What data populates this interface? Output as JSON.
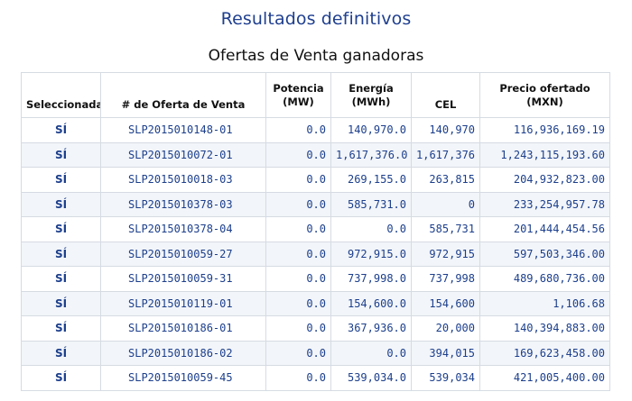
{
  "page_title": "Resultados definitivos",
  "table_title": "Ofertas de Venta ganadoras",
  "columns": {
    "seleccionada": "Seleccionada",
    "oferta": "# de Oferta de Venta",
    "potencia_line1": "Potencia",
    "potencia_line2": "(MW)",
    "energia_line1": "Energía",
    "energia_line2": "(MWh)",
    "cel": "CEL",
    "precio_line1": "Precio ofertado",
    "precio_line2": "(MXN)"
  },
  "rows": [
    {
      "sel": "SÍ",
      "id": "SLP2015010148-01",
      "potencia": "0.0",
      "energia": "140,970.0",
      "cel": "140,970",
      "precio": "116,936,169.19"
    },
    {
      "sel": "SÍ",
      "id": "SLP2015010072-01",
      "potencia": "0.0",
      "energia": "1,617,376.0",
      "cel": "1,617,376",
      "precio": "1,243,115,193.60"
    },
    {
      "sel": "SÍ",
      "id": "SLP2015010018-03",
      "potencia": "0.0",
      "energia": "269,155.0",
      "cel": "263,815",
      "precio": "204,932,823.00"
    },
    {
      "sel": "SÍ",
      "id": "SLP2015010378-03",
      "potencia": "0.0",
      "energia": "585,731.0",
      "cel": "0",
      "precio": "233,254,957.78"
    },
    {
      "sel": "SÍ",
      "id": "SLP2015010378-04",
      "potencia": "0.0",
      "energia": "0.0",
      "cel": "585,731",
      "precio": "201,444,454.56"
    },
    {
      "sel": "SÍ",
      "id": "SLP2015010059-27",
      "potencia": "0.0",
      "energia": "972,915.0",
      "cel": "972,915",
      "precio": "597,503,346.00"
    },
    {
      "sel": "SÍ",
      "id": "SLP2015010059-31",
      "potencia": "0.0",
      "energia": "737,998.0",
      "cel": "737,998",
      "precio": "489,680,736.00"
    },
    {
      "sel": "SÍ",
      "id": "SLP2015010119-01",
      "potencia": "0.0",
      "energia": "154,600.0",
      "cel": "154,600",
      "precio": "1,106.68"
    },
    {
      "sel": "SÍ",
      "id": "SLP2015010186-01",
      "potencia": "0.0",
      "energia": "367,936.0",
      "cel": "20,000",
      "precio": "140,394,883.00"
    },
    {
      "sel": "SÍ",
      "id": "SLP2015010186-02",
      "potencia": "0.0",
      "energia": "0.0",
      "cel": "394,015",
      "precio": "169,623,458.00"
    },
    {
      "sel": "SÍ",
      "id": "SLP2015010059-45",
      "potencia": "0.0",
      "energia": "539,034.0",
      "cel": "539,034",
      "precio": "421,005,400.00"
    }
  ]
}
